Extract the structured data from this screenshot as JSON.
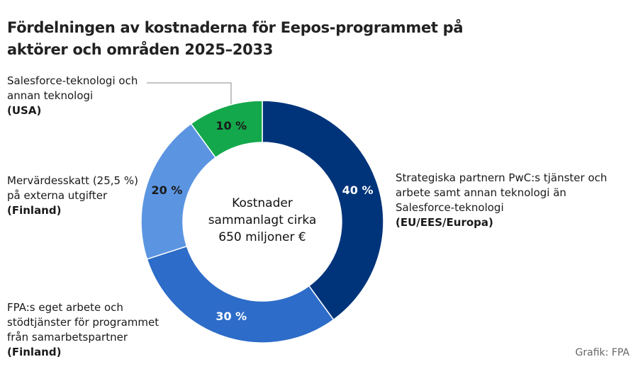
{
  "chart_data": {
    "type": "donut",
    "title": "Fördelningen av kostnaderna för Eepos-programmet på aktörer och områden 2025–2033",
    "categories": [
      "Strategiska partnern PwC:s tjänster och arbete samt annan teknologi än Salesforce-teknologi",
      "FPA:s eget arbete och stödtjänster för programmet från samarbetspartner",
      "Mervärdesskatt (25,5 %) på externa utgifter",
      "Salesforce-teknologi och annan teknologi"
    ],
    "regions": [
      "(EU/EES/Europa)",
      "(Finland)",
      "(Finland)",
      "(USA)"
    ],
    "values": [
      40,
      30,
      20,
      10
    ],
    "value_labels": [
      "40 %",
      "30 %",
      "20 %",
      "10 %"
    ],
    "colors": [
      "#00347a",
      "#2d6cc8",
      "#5b95e2",
      "#13a84b"
    ],
    "value_label_colors": [
      "#ffffff",
      "#ffffff",
      "#1a1a1a",
      "#1a1a1a"
    ],
    "center_text": "Kostnader sammanlagt cirka 650 miljoner €",
    "source": "Grafik: FPA"
  }
}
